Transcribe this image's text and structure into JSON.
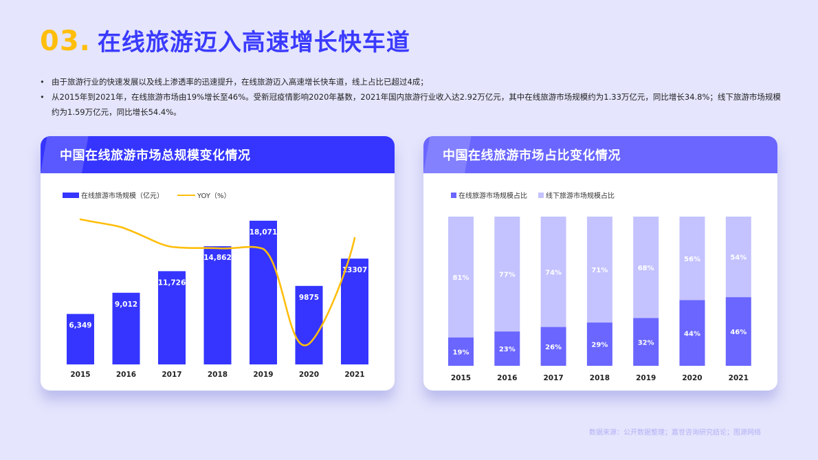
{
  "header": {
    "number": "03.",
    "title": "在线旅游迈入高速增长快车道"
  },
  "bullets": [
    "由于旅游行业的快速发展以及线上渗透率的迅速提升，在线旅游迈入高速增长快车道，线上占比已超过4成；",
    "从2015年到2021年，在线旅游市场由19%增长至46%。受新冠疫情影响2020年基数，2021年国内旅游行业收入达2.92万亿元，其中在线旅游市场规模约为1.33万亿元，同比增长34.8%；线下旅游市场规模约为1.59万亿元，同比增长54.4%。"
  ],
  "colors": {
    "accent_yellow": "#ffbe0b",
    "primary_blue": "#3535ff",
    "online_purple": "#6a66ff",
    "offline_lavender": "#c4c3ff",
    "background": "#e5e5fd"
  },
  "chart_data": [
    {
      "type": "bar",
      "title": "中国在线旅游市场总规模变化情况",
      "categories": [
        "2015",
        "2016",
        "2017",
        "2018",
        "2019",
        "2020",
        "2021"
      ],
      "series": [
        {
          "name": "在线旅游市场规模（亿元）",
          "type": "bar",
          "values": [
            6349,
            9012,
            11726,
            14862,
            18071,
            9875,
            13307
          ],
          "labels": [
            "6,349",
            "9,012",
            "11,726",
            "14,862",
            "18,071",
            "9875",
            "13307"
          ]
        },
        {
          "name": "YOY（%）",
          "type": "line",
          "values": [
            null,
            42,
            30,
            27,
            22,
            -45,
            35
          ]
        }
      ],
      "legend_position": "top-left",
      "grid": false
    },
    {
      "type": "bar",
      "stacked": true,
      "title": "中国在线旅游市场占比变化情况",
      "categories": [
        "2015",
        "2016",
        "2017",
        "2018",
        "2019",
        "2020",
        "2021"
      ],
      "series": [
        {
          "name": "在线旅游市场规模占比",
          "values": [
            19,
            23,
            26,
            29,
            32,
            44,
            46
          ]
        },
        {
          "name": "线下旅游市场规模占比",
          "values": [
            81,
            77,
            74,
            71,
            68,
            56,
            54
          ]
        }
      ],
      "ylim": [
        0,
        100
      ],
      "legend_position": "top-left",
      "grid": false
    }
  ],
  "cards": {
    "left": {
      "title": "中国在线旅游市场总规模变化情况",
      "legend_bar": "在线旅游市场规模（亿元）",
      "legend_line": "YOY（%）"
    },
    "right": {
      "title": "中国在线旅游市场占比变化情况",
      "legend_online": "在线旅游市场规模占比",
      "legend_offline": "线下旅游市场规模占比"
    }
  },
  "footer": {
    "source": "数据来源：公开数据整理；嘉世咨询研究结论；图源网络"
  }
}
